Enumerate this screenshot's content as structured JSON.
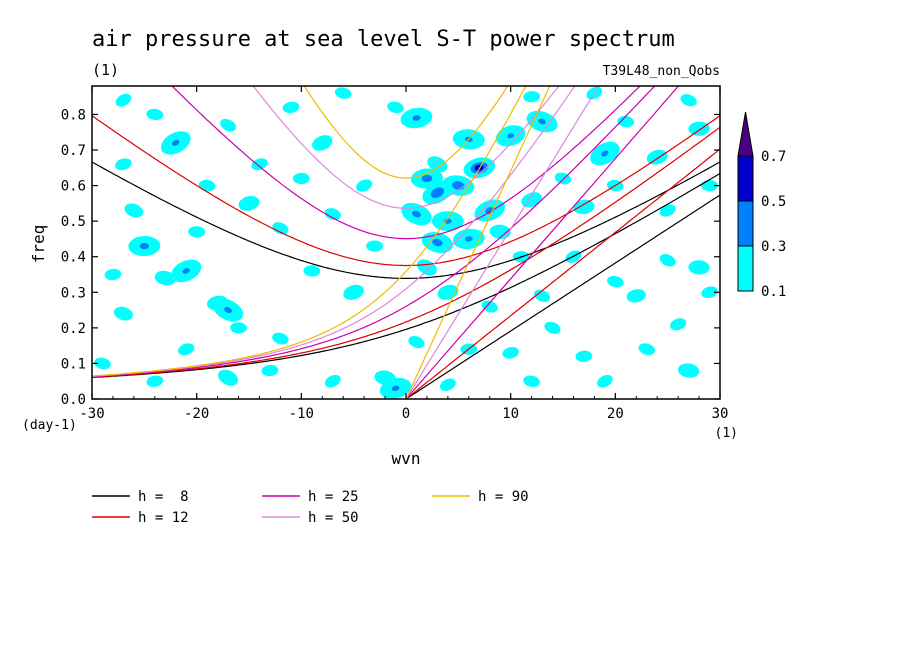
{
  "chart_data": {
    "type": "heatmap",
    "title": "air pressure at sea level S-T power spectrum",
    "subtitle_left": "(1)",
    "subtitle_right": "T39L48_non_Qobs",
    "xlabel": "wvn",
    "ylabel": "freq",
    "x_unit": "(1)",
    "y_unit": "(day-1)",
    "xlim": [
      -30,
      30
    ],
    "ylim": [
      0,
      0.88
    ],
    "x_ticks": [
      -30,
      -20,
      -10,
      0,
      10,
      20,
      30
    ],
    "x_tick_labels": [
      "-30",
      "-20",
      "-10",
      "0",
      "10",
      "20",
      "30"
    ],
    "y_ticks": [
      0.0,
      0.1,
      0.2,
      0.3,
      0.4,
      0.5,
      0.6,
      0.7,
      0.8
    ],
    "y_tick_labels": [
      "0.0",
      "0.1",
      "0.2",
      "0.3",
      "0.4",
      "0.5",
      "0.6",
      "0.7",
      "0.8"
    ],
    "colorbar": {
      "levels": [
        0.1,
        0.3,
        0.5,
        0.7
      ],
      "labels": [
        "0.1",
        "0.3",
        "0.5",
        "0.7"
      ],
      "colors": [
        "#00ffff",
        "#0080ff",
        "#0000cc",
        "#4b0082"
      ],
      "extend": "max"
    },
    "dispersion_curves": [
      {
        "name": "h =  8",
        "h": 8,
        "color": "#000000"
      },
      {
        "name": "h = 12",
        "h": 12,
        "color": "#dd0000"
      },
      {
        "name": "h = 25",
        "h": 25,
        "color": "#cc00aa"
      },
      {
        "name": "h = 50",
        "h": 50,
        "color": "#dd88dd"
      },
      {
        "name": "h = 90",
        "h": 90,
        "color": "#eebb00"
      }
    ],
    "spectrum_blobs": [
      {
        "x": -27,
        "y": 0.84,
        "v": 0.15
      },
      {
        "x": -24,
        "y": 0.8,
        "v": 0.15
      },
      {
        "x": -27,
        "y": 0.66,
        "v": 0.15
      },
      {
        "x": -26,
        "y": 0.53,
        "v": 0.18
      },
      {
        "x": -25,
        "y": 0.43,
        "v": 0.35
      },
      {
        "x": -21,
        "y": 0.36,
        "v": 0.32
      },
      {
        "x": -23,
        "y": 0.34,
        "v": 0.2
      },
      {
        "x": -18,
        "y": 0.27,
        "v": 0.2
      },
      {
        "x": -17,
        "y": 0.25,
        "v": 0.33
      },
      {
        "x": -16,
        "y": 0.2,
        "v": 0.15
      },
      {
        "x": -21,
        "y": 0.14,
        "v": 0.15
      },
      {
        "x": -27,
        "y": 0.24,
        "v": 0.18
      },
      {
        "x": -28,
        "y": 0.35,
        "v": 0.15
      },
      {
        "x": -22,
        "y": 0.72,
        "v": 0.32
      },
      {
        "x": -19,
        "y": 0.6,
        "v": 0.15
      },
      {
        "x": -15,
        "y": 0.55,
        "v": 0.2
      },
      {
        "x": -12,
        "y": 0.48,
        "v": 0.15
      },
      {
        "x": -10,
        "y": 0.62,
        "v": 0.15
      },
      {
        "x": -8,
        "y": 0.72,
        "v": 0.2
      },
      {
        "x": -6,
        "y": 0.86,
        "v": 0.15
      },
      {
        "x": -11,
        "y": 0.82,
        "v": 0.15
      },
      {
        "x": -17,
        "y": 0.77,
        "v": 0.15
      },
      {
        "x": -9,
        "y": 0.36,
        "v": 0.15
      },
      {
        "x": -5,
        "y": 0.3,
        "v": 0.2
      },
      {
        "x": -12,
        "y": 0.17,
        "v": 0.15
      },
      {
        "x": -13,
        "y": 0.08,
        "v": 0.15
      },
      {
        "x": -7,
        "y": 0.05,
        "v": 0.15
      },
      {
        "x": -2,
        "y": 0.06,
        "v": 0.2
      },
      {
        "x": -1,
        "y": 0.03,
        "v": 0.32
      },
      {
        "x": 1,
        "y": 0.16,
        "v": 0.15
      },
      {
        "x": -3,
        "y": 0.43,
        "v": 0.15
      },
      {
        "x": -4,
        "y": 0.6,
        "v": 0.15
      },
      {
        "x": -1,
        "y": 0.82,
        "v": 0.15
      },
      {
        "x": 1,
        "y": 0.79,
        "v": 0.33
      },
      {
        "x": 3,
        "y": 0.66,
        "v": 0.2
      },
      {
        "x": 6,
        "y": 0.73,
        "v": 0.32
      },
      {
        "x": 10,
        "y": 0.74,
        "v": 0.3
      },
      {
        "x": 13,
        "y": 0.78,
        "v": 0.32
      },
      {
        "x": 2,
        "y": 0.62,
        "v": 0.38
      },
      {
        "x": 3,
        "y": 0.58,
        "v": 0.45
      },
      {
        "x": 5,
        "y": 0.6,
        "v": 0.42
      },
      {
        "x": 7,
        "y": 0.65,
        "v": 0.55
      },
      {
        "x": 1,
        "y": 0.52,
        "v": 0.35
      },
      {
        "x": 4,
        "y": 0.5,
        "v": 0.32
      },
      {
        "x": 8,
        "y": 0.53,
        "v": 0.35
      },
      {
        "x": 3,
        "y": 0.44,
        "v": 0.38
      },
      {
        "x": 6,
        "y": 0.45,
        "v": 0.32
      },
      {
        "x": 2,
        "y": 0.37,
        "v": 0.2
      },
      {
        "x": 9,
        "y": 0.47,
        "v": 0.2
      },
      {
        "x": 4,
        "y": 0.3,
        "v": 0.2
      },
      {
        "x": 8,
        "y": 0.26,
        "v": 0.15
      },
      {
        "x": 6,
        "y": 0.14,
        "v": 0.15
      },
      {
        "x": 4,
        "y": 0.04,
        "v": 0.15
      },
      {
        "x": 12,
        "y": 0.05,
        "v": 0.15
      },
      {
        "x": 10,
        "y": 0.13,
        "v": 0.15
      },
      {
        "x": 13,
        "y": 0.29,
        "v": 0.15
      },
      {
        "x": 11,
        "y": 0.4,
        "v": 0.15
      },
      {
        "x": 12,
        "y": 0.56,
        "v": 0.2
      },
      {
        "x": 15,
        "y": 0.62,
        "v": 0.15
      },
      {
        "x": 17,
        "y": 0.54,
        "v": 0.2
      },
      {
        "x": 19,
        "y": 0.69,
        "v": 0.32
      },
      {
        "x": 21,
        "y": 0.78,
        "v": 0.15
      },
      {
        "x": 24,
        "y": 0.68,
        "v": 0.2
      },
      {
        "x": 27,
        "y": 0.84,
        "v": 0.15
      },
      {
        "x": 28,
        "y": 0.76,
        "v": 0.2
      },
      {
        "x": 16,
        "y": 0.4,
        "v": 0.15
      },
      {
        "x": 20,
        "y": 0.33,
        "v": 0.15
      },
      {
        "x": 22,
        "y": 0.29,
        "v": 0.18
      },
      {
        "x": 25,
        "y": 0.39,
        "v": 0.15
      },
      {
        "x": 28,
        "y": 0.37,
        "v": 0.2
      },
      {
        "x": 26,
        "y": 0.21,
        "v": 0.15
      },
      {
        "x": 23,
        "y": 0.14,
        "v": 0.15
      },
      {
        "x": 17,
        "y": 0.12,
        "v": 0.15
      },
      {
        "x": 19,
        "y": 0.05,
        "v": 0.15
      },
      {
        "x": 27,
        "y": 0.08,
        "v": 0.2
      },
      {
        "x": 29,
        "y": 0.3,
        "v": 0.15
      },
      {
        "x": 14,
        "y": 0.2,
        "v": 0.15
      },
      {
        "x": 29,
        "y": 0.6,
        "v": 0.15
      },
      {
        "x": 25,
        "y": 0.53,
        "v": 0.15
      },
      {
        "x": -29,
        "y": 0.1,
        "v": 0.15
      },
      {
        "x": -24,
        "y": 0.05,
        "v": 0.15
      },
      {
        "x": -17,
        "y": 0.06,
        "v": 0.2
      },
      {
        "x": -20,
        "y": 0.47,
        "v": 0.15
      },
      {
        "x": -14,
        "y": 0.66,
        "v": 0.15
      },
      {
        "x": -7,
        "y": 0.52,
        "v": 0.15
      },
      {
        "x": 12,
        "y": 0.85,
        "v": 0.15
      },
      {
        "x": 18,
        "y": 0.86,
        "v": 0.15
      },
      {
        "x": 20,
        "y": 0.6,
        "v": 0.15
      }
    ]
  }
}
